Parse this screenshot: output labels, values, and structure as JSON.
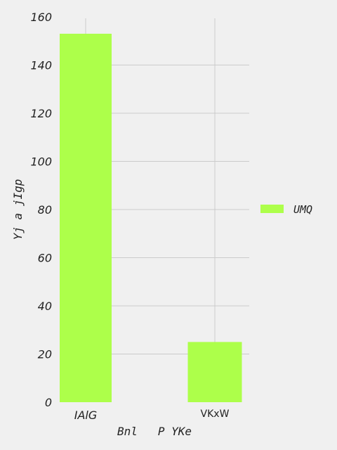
{
  "chart_data": {
    "type": "bar",
    "title": "",
    "xlabel": "Bnl   P YKe",
    "ylabel": "Yj a jIgp",
    "categories": [
      "IAlG",
      "VKxW"
    ],
    "series": [
      {
        "name": "UMQ",
        "values": [
          153,
          25
        ],
        "color": "#adff4a"
      }
    ],
    "ylim": [
      0,
      160
    ],
    "yticks": [
      0,
      20,
      40,
      60,
      80,
      100,
      120,
      140,
      160
    ],
    "grid": true,
    "legend": "right"
  },
  "colors": {
    "background": "#f0f0f0",
    "grid": "#cbcbcb",
    "bar": "#adff4a",
    "text": "#222222"
  }
}
